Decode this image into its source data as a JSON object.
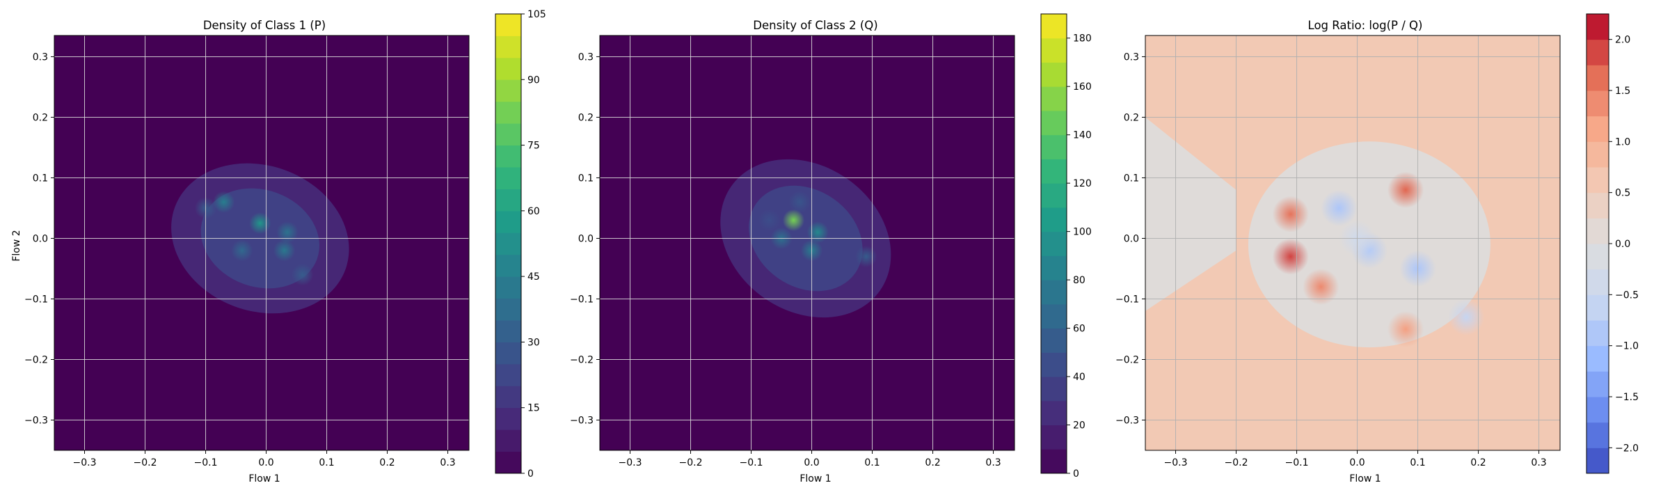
{
  "chart_data": [
    {
      "type": "heatmap",
      "title": "Density of Class 1 (P)",
      "xlabel": "Flow 1",
      "ylabel": "Flow 2",
      "xlim": [
        -0.35,
        0.335
      ],
      "ylim": [
        -0.35,
        0.335
      ],
      "xticks": [
        "-0.3",
        "-0.2",
        "-0.1",
        "0.0",
        "0.1",
        "0.2",
        "0.3"
      ],
      "yticks": [
        "0.3",
        "0.2",
        "0.1",
        "0.0",
        "-0.1",
        "-0.2",
        "-0.3"
      ],
      "grid": true,
      "colormap": "viridis",
      "colorbar": {
        "min": 0,
        "max": 105,
        "ticks": [
          "105",
          "90",
          "75",
          "60",
          "45",
          "30",
          "15",
          "0"
        ]
      },
      "hotspots": [
        {
          "x": -0.07,
          "y": 0.06,
          "value": 45
        },
        {
          "x": -0.01,
          "y": 0.025,
          "value": 55
        },
        {
          "x": 0.035,
          "y": 0.01,
          "value": 40
        },
        {
          "x": -0.04,
          "y": -0.02,
          "value": 35
        },
        {
          "x": 0.03,
          "y": -0.02,
          "value": 42
        },
        {
          "x": 0.06,
          "y": -0.06,
          "value": 30
        },
        {
          "x": -0.1,
          "y": 0.05,
          "value": 30
        }
      ]
    },
    {
      "type": "heatmap",
      "title": "Density of Class 2 (Q)",
      "xlabel": "Flow 1",
      "ylabel": "",
      "xlim": [
        -0.35,
        0.335
      ],
      "ylim": [
        -0.35,
        0.335
      ],
      "xticks": [
        "-0.3",
        "-0.2",
        "-0.1",
        "0.0",
        "0.1",
        "0.2",
        "0.3"
      ],
      "yticks": [
        "0.3",
        "0.2",
        "0.1",
        "0.0",
        "-0.1",
        "-0.2",
        "-0.3"
      ],
      "grid": true,
      "colormap": "viridis",
      "colorbar": {
        "min": 0,
        "max": 190,
        "ticks": [
          "180",
          "160",
          "140",
          "120",
          "100",
          "80",
          "60",
          "40",
          "20",
          "0"
        ]
      },
      "hotspots": [
        {
          "x": -0.03,
          "y": 0.03,
          "value": 150
        },
        {
          "x": 0.01,
          "y": 0.01,
          "value": 90
        },
        {
          "x": -0.05,
          "y": 0.0,
          "value": 70
        },
        {
          "x": 0.0,
          "y": -0.02,
          "value": 80
        },
        {
          "x": 0.09,
          "y": -0.03,
          "value": 55
        },
        {
          "x": -0.02,
          "y": 0.06,
          "value": 50
        },
        {
          "x": -0.07,
          "y": 0.03,
          "value": 45
        }
      ]
    },
    {
      "type": "heatmap",
      "title": "Log Ratio: log(P / Q)",
      "xlabel": "Flow 1",
      "ylabel": "",
      "xlim": [
        -0.35,
        0.335
      ],
      "ylim": [
        -0.35,
        0.335
      ],
      "xticks": [
        "-0.3",
        "-0.2",
        "-0.1",
        "0.0",
        "0.1",
        "0.2",
        "0.3"
      ],
      "yticks": [
        "0.3",
        "0.2",
        "0.1",
        "0.0",
        "-0.1",
        "-0.2",
        "-0.3"
      ],
      "grid": true,
      "colormap": "coolwarm",
      "colorbar": {
        "min": -2.25,
        "max": 2.25,
        "ticks": [
          "2.0",
          "1.5",
          "1.0",
          "0.5",
          "0.0",
          "−0.5",
          "−1.0",
          "−1.5",
          "−2.0"
        ]
      },
      "background_value": 0.6,
      "hotspots": [
        {
          "x": -0.11,
          "y": -0.03,
          "value": 1.9
        },
        {
          "x": -0.11,
          "y": 0.04,
          "value": 1.6
        },
        {
          "x": -0.06,
          "y": -0.08,
          "value": 1.4
        },
        {
          "x": 0.08,
          "y": 0.08,
          "value": 1.7
        },
        {
          "x": 0.08,
          "y": -0.15,
          "value": 1.2
        },
        {
          "x": -0.03,
          "y": 0.05,
          "value": -0.9
        },
        {
          "x": 0.02,
          "y": -0.02,
          "value": -0.8
        },
        {
          "x": 0.1,
          "y": -0.05,
          "value": -0.9
        },
        {
          "x": 0.18,
          "y": -0.13,
          "value": -0.6
        },
        {
          "x": 0.0,
          "y": 0.0,
          "value": -0.4
        }
      ]
    }
  ]
}
